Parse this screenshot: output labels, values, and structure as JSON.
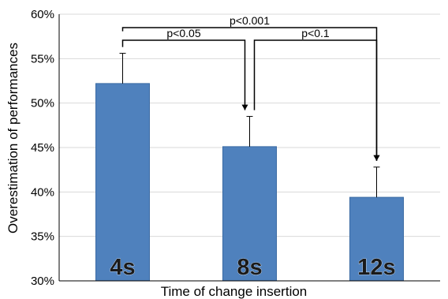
{
  "chart_data": {
    "type": "bar",
    "categories": [
      "4s",
      "8s",
      "12s"
    ],
    "values": [
      52.2,
      45.1,
      39.4
    ],
    "error_upper": [
      55.6,
      48.5,
      42.8
    ],
    "xlabel": "Time of change insertion",
    "ylabel": "Overestimation of performances",
    "ylim": [
      30,
      60
    ],
    "yticks": [
      "30%",
      "35%",
      "40%",
      "45%",
      "50%",
      "55%",
      "60%"
    ],
    "grid": true,
    "bar_color": "#4f81bd",
    "bar_edge_color": "#3a6aa3",
    "grid_color": "#d9d9d9",
    "significance": [
      {
        "label": "p<0.001",
        "from": 0,
        "to": 2
      },
      {
        "label": "p<0.05",
        "from": 0,
        "to": 1
      },
      {
        "label": "p<0.1",
        "from": 1,
        "to": 2
      }
    ]
  }
}
